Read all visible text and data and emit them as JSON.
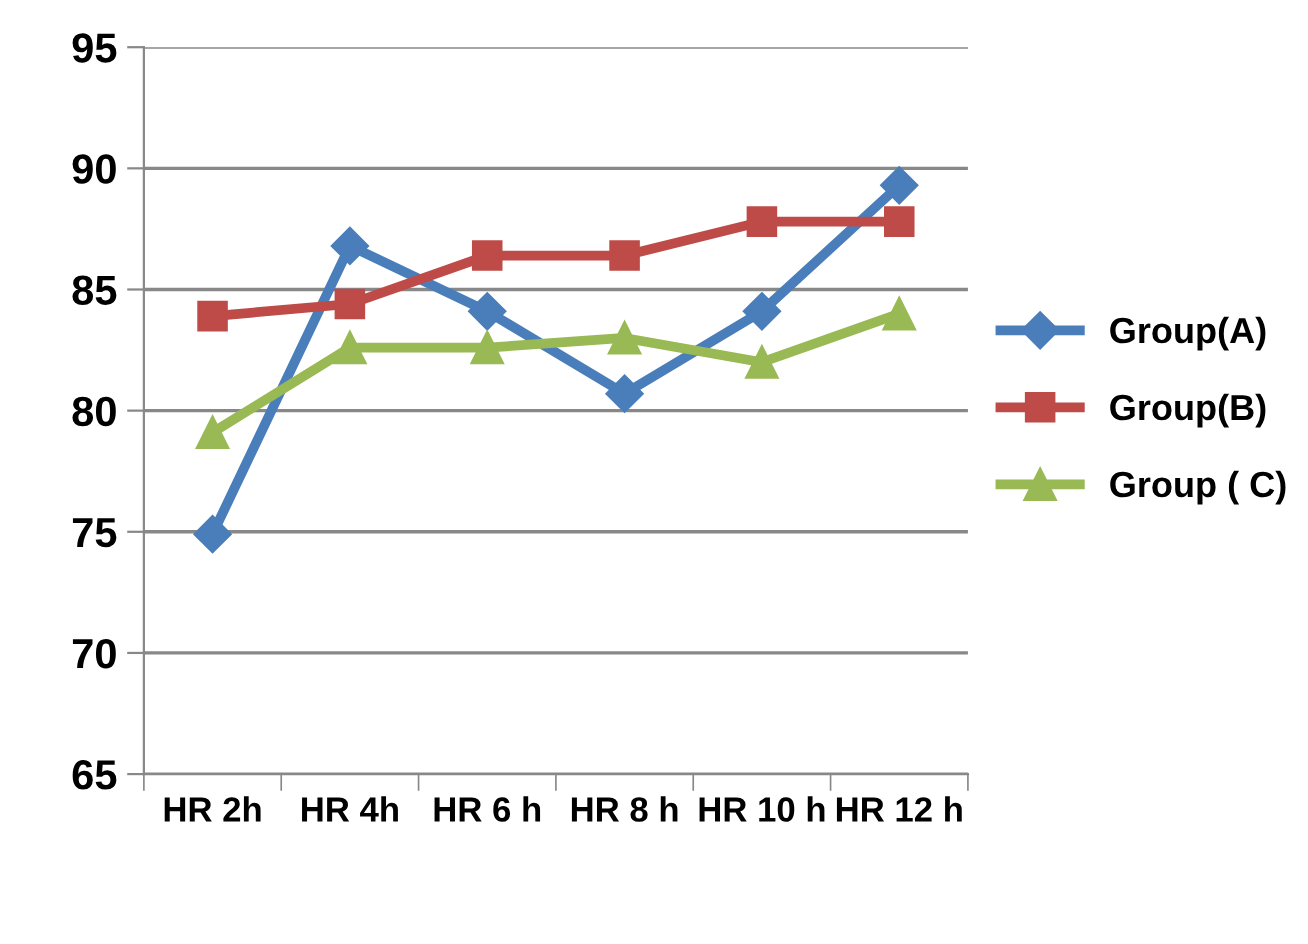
{
  "chart_data": {
    "type": "line",
    "categories": [
      "HR 2h",
      "HR 4h",
      "HR 6 h",
      "HR 8 h",
      "HR 10 h",
      "HR 12 h"
    ],
    "series": [
      {
        "name": "Group(A)",
        "color": "#4a7ebb",
        "marker": "diamond",
        "values": [
          74.9,
          86.8,
          84.1,
          80.7,
          84.1,
          89.3
        ]
      },
      {
        "name": "Group(B)",
        "color": "#be4b48",
        "marker": "square",
        "values": [
          83.9,
          84.4,
          86.4,
          86.4,
          87.8,
          87.8
        ]
      },
      {
        "name": "Group ( C)",
        "color": "#98b954",
        "marker": "triangle",
        "values": [
          79.1,
          82.6,
          82.6,
          83.0,
          82.0,
          84.0
        ]
      }
    ],
    "ylim": [
      65,
      95
    ],
    "yticks": [
      65,
      70,
      75,
      80,
      85,
      90,
      95
    ],
    "grid": "y",
    "legend": "right"
  }
}
